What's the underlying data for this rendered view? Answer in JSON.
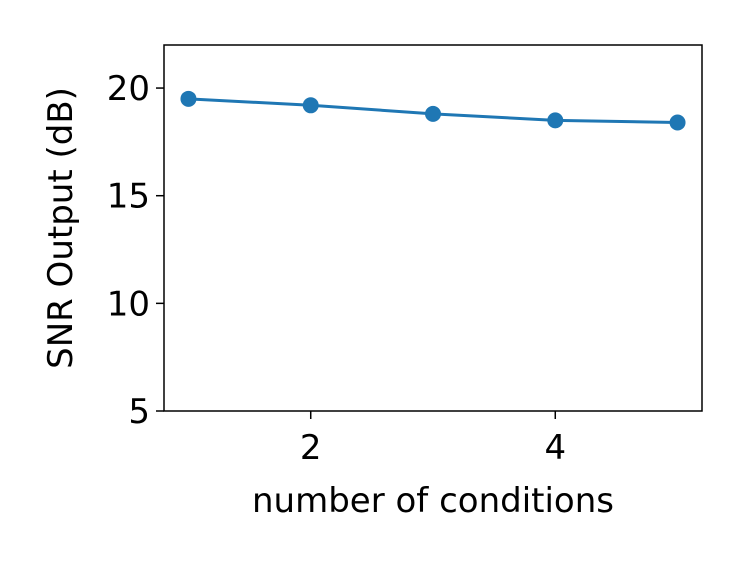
{
  "chart_data": {
    "type": "line",
    "x_label": "number of conditions",
    "y_label": "SNR Output (dB)",
    "x": [
      1,
      2,
      3,
      4,
      5
    ],
    "series": [
      {
        "name": "SNR Output",
        "color": "#1f77b4",
        "values": [
          19.5,
          19.2,
          18.8,
          18.5,
          18.4
        ]
      }
    ],
    "xlim": [
      0.8,
      5.2
    ],
    "xticks": [
      2,
      4
    ],
    "ylim": [
      5,
      22
    ],
    "yticks": [
      5,
      10,
      15,
      20
    ]
  }
}
